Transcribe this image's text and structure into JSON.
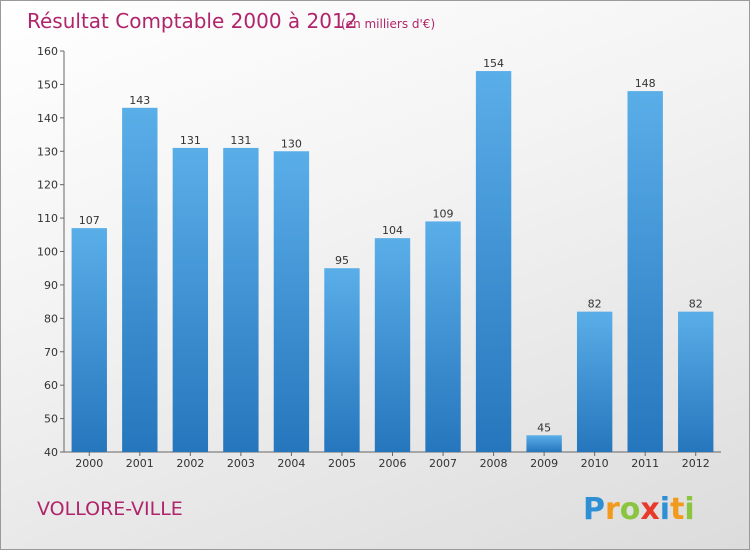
{
  "chart_data": {
    "type": "bar",
    "title": "Résultat Comptable 2000 à 2012",
    "subtitle": "(en milliers d'€)",
    "categories": [
      "2000",
      "2001",
      "2002",
      "2003",
      "2004",
      "2005",
      "2006",
      "2007",
      "2008",
      "2009",
      "2010",
      "2011",
      "2012"
    ],
    "values": [
      107,
      143,
      131,
      131,
      130,
      95,
      104,
      109,
      154,
      45,
      82,
      148,
      82
    ],
    "ylim": [
      40,
      160
    ],
    "yticks": [
      40,
      50,
      60,
      70,
      80,
      90,
      100,
      110,
      120,
      130,
      140,
      150,
      160
    ],
    "xlabel": "",
    "ylabel": "",
    "grid": false,
    "bar_color": "#5aaee8",
    "bar_color_dark": "#2676bd"
  },
  "commune": "VOLLORE-VILLE",
  "logo": {
    "letters": [
      "P",
      "r",
      "o",
      "x",
      "i",
      "t",
      "i"
    ],
    "colors": [
      "#2f8fd4",
      "#f29a1b",
      "#8bc53f",
      "#e8392a",
      "#2f8fd4",
      "#f29a1b",
      "#8bc53f"
    ]
  }
}
